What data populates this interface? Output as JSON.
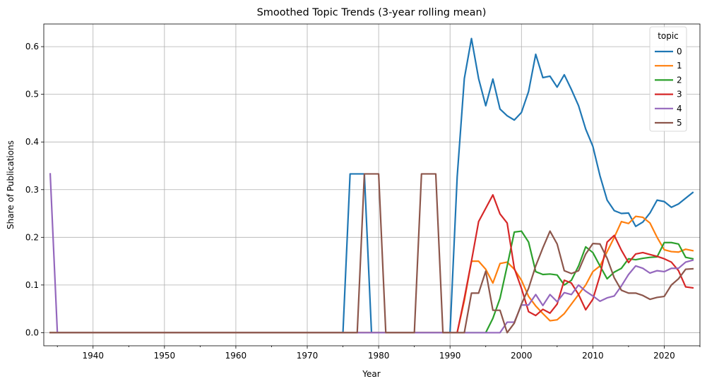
{
  "chart_data": {
    "type": "line",
    "title": "Smoothed Topic Trends (3-year rolling mean)",
    "xlabel": "Year",
    "ylabel": "Share of Publications",
    "xlim": [
      1933.1,
      2025.0
    ],
    "ylim": [
      -0.0275,
      0.6475
    ],
    "x_ticks": [
      1940,
      1950,
      1960,
      1970,
      1980,
      1990,
      2000,
      2010,
      2020
    ],
    "x_tick_labels": [
      "1940",
      "1950",
      "1960",
      "1970",
      "1980",
      "1990",
      "2000",
      "2010",
      "2020"
    ],
    "y_ticks": [
      0.0,
      0.1,
      0.2,
      0.3,
      0.4,
      0.5,
      0.6
    ],
    "y_tick_labels": [
      "0.0",
      "0.1",
      "0.2",
      "0.3",
      "0.4",
      "0.5",
      "0.6"
    ],
    "grid": true,
    "legend": {
      "title": "topic",
      "position": "upper right",
      "entries": [
        "0",
        "1",
        "2",
        "3",
        "4",
        "5"
      ]
    },
    "colors": [
      "#1f77b4",
      "#ff7f0e",
      "#2ca02c",
      "#d62728",
      "#9467bd",
      "#8c564b"
    ],
    "series": [
      {
        "name": "0",
        "points": [
          [
            1934,
            0
          ],
          [
            1975,
            0
          ],
          [
            1976,
            0.333
          ],
          [
            1977,
            0.333
          ],
          [
            1978,
            0.333
          ],
          [
            1979,
            0
          ],
          [
            1990,
            0
          ],
          [
            1991,
            0.327
          ],
          [
            1992,
            0.533
          ],
          [
            1993,
            0.617
          ],
          [
            1994,
            0.533
          ],
          [
            1995,
            0.476
          ],
          [
            1996,
            0.532
          ],
          [
            1997,
            0.469
          ],
          [
            1998,
            0.455
          ],
          [
            1999,
            0.446
          ],
          [
            2000,
            0.462
          ],
          [
            2001,
            0.506
          ],
          [
            2002,
            0.584
          ],
          [
            2003,
            0.535
          ],
          [
            2004,
            0.538
          ],
          [
            2005,
            0.515
          ],
          [
            2006,
            0.541
          ],
          [
            2007,
            0.51
          ],
          [
            2008,
            0.476
          ],
          [
            2009,
            0.427
          ],
          [
            2010,
            0.391
          ],
          [
            2011,
            0.329
          ],
          [
            2012,
            0.278
          ],
          [
            2013,
            0.256
          ],
          [
            2014,
            0.25
          ],
          [
            2015,
            0.251
          ],
          [
            2016,
            0.223
          ],
          [
            2017,
            0.232
          ],
          [
            2018,
            0.251
          ],
          [
            2019,
            0.278
          ],
          [
            2020,
            0.275
          ],
          [
            2021,
            0.263
          ],
          [
            2022,
            0.27
          ],
          [
            2023,
            0.282
          ],
          [
            2024,
            0.294
          ]
        ]
      },
      {
        "name": "1",
        "points": [
          [
            1934,
            0
          ],
          [
            1991,
            0
          ],
          [
            1992,
            0.067
          ],
          [
            1993,
            0.15
          ],
          [
            1994,
            0.15
          ],
          [
            1995,
            0.133
          ],
          [
            1996,
            0.104
          ],
          [
            1997,
            0.145
          ],
          [
            1998,
            0.148
          ],
          [
            1999,
            0.133
          ],
          [
            2000,
            0.11
          ],
          [
            2001,
            0.076
          ],
          [
            2002,
            0.056
          ],
          [
            2003,
            0.04
          ],
          [
            2004,
            0.025
          ],
          [
            2005,
            0.027
          ],
          [
            2006,
            0.04
          ],
          [
            2007,
            0.06
          ],
          [
            2008,
            0.08
          ],
          [
            2009,
            0.1
          ],
          [
            2010,
            0.128
          ],
          [
            2011,
            0.14
          ],
          [
            2012,
            0.17
          ],
          [
            2013,
            0.2
          ],
          [
            2014,
            0.233
          ],
          [
            2015,
            0.229
          ],
          [
            2016,
            0.244
          ],
          [
            2017,
            0.242
          ],
          [
            2018,
            0.23
          ],
          [
            2019,
            0.2
          ],
          [
            2020,
            0.174
          ],
          [
            2021,
            0.17
          ],
          [
            2022,
            0.169
          ],
          [
            2023,
            0.175
          ],
          [
            2024,
            0.172
          ]
        ]
      },
      {
        "name": "2",
        "points": [
          [
            1934,
            0
          ],
          [
            1995,
            0
          ],
          [
            1996,
            0.03
          ],
          [
            1997,
            0.072
          ],
          [
            1998,
            0.14
          ],
          [
            1999,
            0.211
          ],
          [
            2000,
            0.213
          ],
          [
            2001,
            0.19
          ],
          [
            2002,
            0.128
          ],
          [
            2003,
            0.122
          ],
          [
            2004,
            0.123
          ],
          [
            2005,
            0.121
          ],
          [
            2006,
            0.1
          ],
          [
            2007,
            0.11
          ],
          [
            2008,
            0.14
          ],
          [
            2009,
            0.18
          ],
          [
            2010,
            0.168
          ],
          [
            2011,
            0.14
          ],
          [
            2012,
            0.113
          ],
          [
            2013,
            0.127
          ],
          [
            2014,
            0.135
          ],
          [
            2015,
            0.155
          ],
          [
            2016,
            0.153
          ],
          [
            2017,
            0.156
          ],
          [
            2018,
            0.158
          ],
          [
            2019,
            0.159
          ],
          [
            2020,
            0.189
          ],
          [
            2021,
            0.189
          ],
          [
            2022,
            0.186
          ],
          [
            2023,
            0.158
          ],
          [
            2024,
            0.155
          ]
        ]
      },
      {
        "name": "3",
        "points": [
          [
            1934,
            0
          ],
          [
            1991,
            0
          ],
          [
            1992,
            0.072
          ],
          [
            1993,
            0.15
          ],
          [
            1994,
            0.233
          ],
          [
            1995,
            0.261
          ],
          [
            1996,
            0.289
          ],
          [
            1997,
            0.249
          ],
          [
            1998,
            0.23
          ],
          [
            1999,
            0.135
          ],
          [
            2000,
            0.093
          ],
          [
            2001,
            0.044
          ],
          [
            2002,
            0.036
          ],
          [
            2003,
            0.049
          ],
          [
            2004,
            0.041
          ],
          [
            2005,
            0.06
          ],
          [
            2006,
            0.11
          ],
          [
            2007,
            0.104
          ],
          [
            2008,
            0.08
          ],
          [
            2009,
            0.048
          ],
          [
            2010,
            0.07
          ],
          [
            2011,
            0.12
          ],
          [
            2012,
            0.19
          ],
          [
            2013,
            0.204
          ],
          [
            2014,
            0.173
          ],
          [
            2015,
            0.147
          ],
          [
            2016,
            0.165
          ],
          [
            2017,
            0.168
          ],
          [
            2018,
            0.164
          ],
          [
            2019,
            0.16
          ],
          [
            2020,
            0.155
          ],
          [
            2021,
            0.148
          ],
          [
            2022,
            0.13
          ],
          [
            2023,
            0.096
          ],
          [
            2024,
            0.094
          ]
        ]
      },
      {
        "name": "4",
        "points": [
          [
            1934,
            0.333
          ],
          [
            1935,
            0
          ],
          [
            1997,
            0
          ],
          [
            1998,
            0.022
          ],
          [
            1999,
            0.022
          ],
          [
            2000,
            0.058
          ],
          [
            2001,
            0.058
          ],
          [
            2002,
            0.08
          ],
          [
            2003,
            0.057
          ],
          [
            2004,
            0.08
          ],
          [
            2005,
            0.065
          ],
          [
            2006,
            0.084
          ],
          [
            2007,
            0.08
          ],
          [
            2008,
            0.1
          ],
          [
            2009,
            0.087
          ],
          [
            2010,
            0.077
          ],
          [
            2011,
            0.066
          ],
          [
            2012,
            0.073
          ],
          [
            2013,
            0.077
          ],
          [
            2014,
            0.098
          ],
          [
            2015,
            0.122
          ],
          [
            2016,
            0.14
          ],
          [
            2017,
            0.135
          ],
          [
            2018,
            0.125
          ],
          [
            2019,
            0.13
          ],
          [
            2020,
            0.128
          ],
          [
            2021,
            0.135
          ],
          [
            2022,
            0.135
          ],
          [
            2023,
            0.148
          ],
          [
            2024,
            0.152
          ]
        ]
      },
      {
        "name": "5",
        "points": [
          [
            1934,
            0
          ],
          [
            1977,
            0
          ],
          [
            1978,
            0.333
          ],
          [
            1979,
            0.333
          ],
          [
            1980,
            0.333
          ],
          [
            1981,
            0
          ],
          [
            1985,
            0
          ],
          [
            1986,
            0.333
          ],
          [
            1987,
            0.333
          ],
          [
            1988,
            0.333
          ],
          [
            1989,
            0
          ],
          [
            1992,
            0
          ],
          [
            1993,
            0.083
          ],
          [
            1994,
            0.083
          ],
          [
            1995,
            0.129
          ],
          [
            1996,
            0.047
          ],
          [
            1997,
            0.047
          ],
          [
            1998,
            0
          ],
          [
            1999,
            0.02
          ],
          [
            2000,
            0.06
          ],
          [
            2001,
            0.093
          ],
          [
            2002,
            0.14
          ],
          [
            2003,
            0.178
          ],
          [
            2004,
            0.213
          ],
          [
            2005,
            0.186
          ],
          [
            2006,
            0.13
          ],
          [
            2007,
            0.124
          ],
          [
            2008,
            0.13
          ],
          [
            2009,
            0.165
          ],
          [
            2010,
            0.187
          ],
          [
            2011,
            0.186
          ],
          [
            2012,
            0.156
          ],
          [
            2013,
            0.115
          ],
          [
            2014,
            0.089
          ],
          [
            2015,
            0.083
          ],
          [
            2016,
            0.083
          ],
          [
            2017,
            0.078
          ],
          [
            2018,
            0.07
          ],
          [
            2019,
            0.074
          ],
          [
            2020,
            0.076
          ],
          [
            2021,
            0.1
          ],
          [
            2022,
            0.113
          ],
          [
            2023,
            0.133
          ],
          [
            2024,
            0.134
          ]
        ]
      }
    ]
  }
}
